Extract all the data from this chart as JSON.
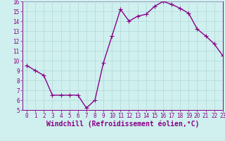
{
  "x": [
    0,
    1,
    2,
    3,
    4,
    5,
    6,
    7,
    8,
    9,
    10,
    11,
    12,
    13,
    14,
    15,
    16,
    17,
    18,
    19,
    20,
    21,
    22,
    23
  ],
  "y": [
    9.5,
    9.0,
    8.5,
    6.5,
    6.5,
    6.5,
    6.5,
    5.2,
    6.0,
    9.8,
    12.5,
    15.2,
    14.0,
    14.5,
    14.7,
    15.5,
    16.0,
    15.7,
    15.3,
    14.8,
    13.2,
    12.5,
    11.7,
    10.5
  ],
  "line_color": "#880088",
  "marker": "+",
  "marker_size": 4,
  "marker_linewidth": 0.8,
  "bg_color": "#cff0ee",
  "grid_color": "#b0d8d8",
  "xlabel": "Windchill (Refroidissement éolien,°C)",
  "xlabel_color": "#880088",
  "tick_color": "#880088",
  "spine_color": "#880088",
  "ylim": [
    5,
    16
  ],
  "xlim": [
    -0.5,
    23
  ],
  "yticks": [
    5,
    6,
    7,
    8,
    9,
    10,
    11,
    12,
    13,
    14,
    15,
    16
  ],
  "xticks": [
    0,
    1,
    2,
    3,
    4,
    5,
    6,
    7,
    8,
    9,
    10,
    11,
    12,
    13,
    14,
    15,
    16,
    17,
    18,
    19,
    20,
    21,
    22,
    23
  ],
  "tick_fontsize": 5.5,
  "xlabel_fontsize": 7.0,
  "line_width": 1.0
}
